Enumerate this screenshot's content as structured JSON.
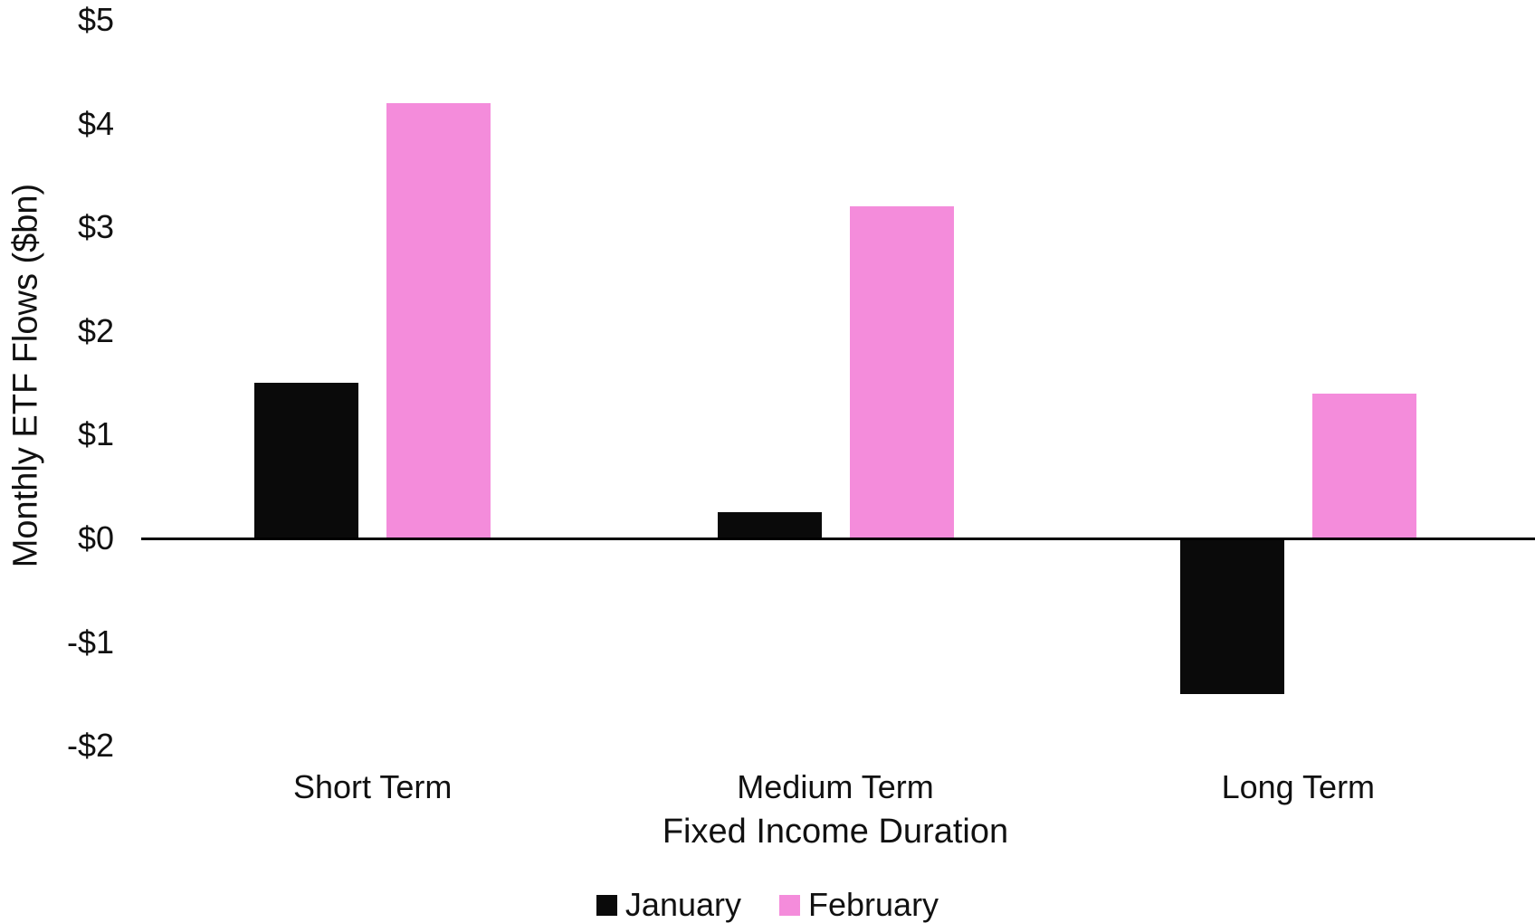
{
  "chart_data": {
    "type": "bar",
    "title": "",
    "xlabel": "Fixed Income Duration",
    "ylabel": "Monthly ETF Flows ($bn)",
    "categories": [
      "Short Term",
      "Medium Term",
      "Long Term"
    ],
    "series": [
      {
        "name": "January",
        "color": "#0a0a0a",
        "values": [
          1.5,
          0.25,
          -1.5
        ]
      },
      {
        "name": "February",
        "color": "#f48cdb",
        "values": [
          4.2,
          3.2,
          1.4
        ]
      }
    ],
    "y_ticks": [
      {
        "value": 5,
        "label": "$5"
      },
      {
        "value": 4,
        "label": "$4"
      },
      {
        "value": 3,
        "label": "$3"
      },
      {
        "value": 2,
        "label": "$2"
      },
      {
        "value": 1,
        "label": "$1"
      },
      {
        "value": 0,
        "label": "$0"
      },
      {
        "value": -1,
        "label": "-$1"
      },
      {
        "value": -2,
        "label": "-$2"
      }
    ],
    "ylim": [
      -2,
      5
    ],
    "grid": false,
    "legend_position": "bottom",
    "background_color": "#ffffff",
    "axis_line_color": "#000000"
  }
}
